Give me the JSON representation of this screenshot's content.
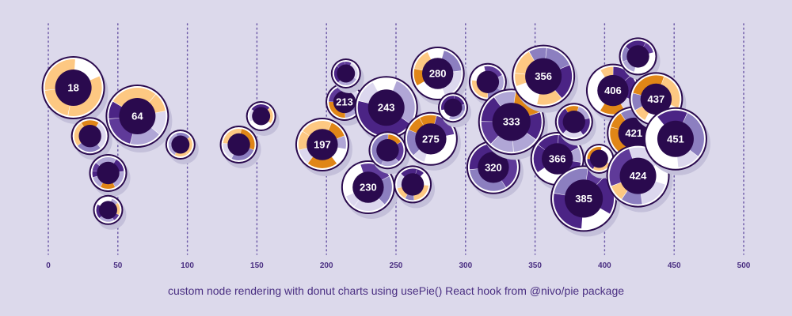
{
  "caption": "custom node rendering with donut charts using usePie() React hook from @nivo/pie package",
  "colors": {
    "background": "#dcd9eb",
    "node_fill": "#2a0a4e",
    "ring_outline": "#2a0a4e",
    "shadow": "#c4c0da",
    "palette": [
      "#4b2485",
      "#8c7fc0",
      "#dcd7ee",
      "#fdc882",
      "#e08617",
      "#5f3a99",
      "#b0a6d6",
      "#ffffff"
    ]
  },
  "chart_data": {
    "type": "scatter",
    "subtype": "swarm plot with donut-chart nodes",
    "xlim": [
      0,
      500
    ],
    "x_ticks": [
      "0",
      "50",
      "100",
      "150",
      "200",
      "250",
      "300",
      "350",
      "400",
      "450",
      "500"
    ],
    "grid": "vertical dotted",
    "nodes": [
      {
        "x": 18,
        "row": 2.0,
        "size": "large",
        "label": "18"
      },
      {
        "x": 30,
        "row": 3.7,
        "size": "small",
        "label": ""
      },
      {
        "x": 43,
        "row": 5.0,
        "size": "small",
        "label": ""
      },
      {
        "x": 43,
        "row": 6.3,
        "size": "xsmall",
        "label": ""
      },
      {
        "x": 64,
        "row": 3.0,
        "size": "large",
        "label": "64"
      },
      {
        "x": 95,
        "row": 4.0,
        "size": "xsmall",
        "label": ""
      },
      {
        "x": 137,
        "row": 4.0,
        "size": "small",
        "label": ""
      },
      {
        "x": 153,
        "row": 3.0,
        "size": "xsmall",
        "label": ""
      },
      {
        "x": 197,
        "row": 4.0,
        "size": "medium",
        "label": "197"
      },
      {
        "x": 213,
        "row": 2.5,
        "size": "small",
        "label": "213"
      },
      {
        "x": 214,
        "row": 1.5,
        "size": "xsmall",
        "label": ""
      },
      {
        "x": 230,
        "row": 5.5,
        "size": "medium",
        "label": "230"
      },
      {
        "x": 243,
        "row": 2.7,
        "size": "large",
        "label": "243"
      },
      {
        "x": 244,
        "row": 4.2,
        "size": "small",
        "label": ""
      },
      {
        "x": 262,
        "row": 5.4,
        "size": "small",
        "label": ""
      },
      {
        "x": 275,
        "row": 3.8,
        "size": "medium",
        "label": "275"
      },
      {
        "x": 280,
        "row": 1.5,
        "size": "medium",
        "label": "280"
      },
      {
        "x": 291,
        "row": 2.7,
        "size": "xsmall",
        "label": ""
      },
      {
        "x": 316,
        "row": 1.8,
        "size": "small",
        "label": ""
      },
      {
        "x": 320,
        "row": 4.8,
        "size": "medium",
        "label": "320"
      },
      {
        "x": 333,
        "row": 3.2,
        "size": "xlarge",
        "label": "333"
      },
      {
        "x": 356,
        "row": 1.6,
        "size": "large",
        "label": "356"
      },
      {
        "x": 366,
        "row": 4.5,
        "size": "medium",
        "label": "366"
      },
      {
        "x": 378,
        "row": 3.2,
        "size": "small",
        "label": ""
      },
      {
        "x": 385,
        "row": 5.9,
        "size": "xlarge",
        "label": "385"
      },
      {
        "x": 396,
        "row": 4.5,
        "size": "xsmall",
        "label": ""
      },
      {
        "x": 406,
        "row": 2.1,
        "size": "medium",
        "label": "406"
      },
      {
        "x": 421,
        "row": 3.6,
        "size": "medium",
        "label": "421"
      },
      {
        "x": 424,
        "row": 5.1,
        "size": "large",
        "label": "424"
      },
      {
        "x": 424,
        "row": 0.9,
        "size": "small",
        "label": ""
      },
      {
        "x": 437,
        "row": 2.4,
        "size": "medium",
        "label": "437"
      },
      {
        "x": 451,
        "row": 3.8,
        "size": "large",
        "label": "451"
      }
    ]
  }
}
